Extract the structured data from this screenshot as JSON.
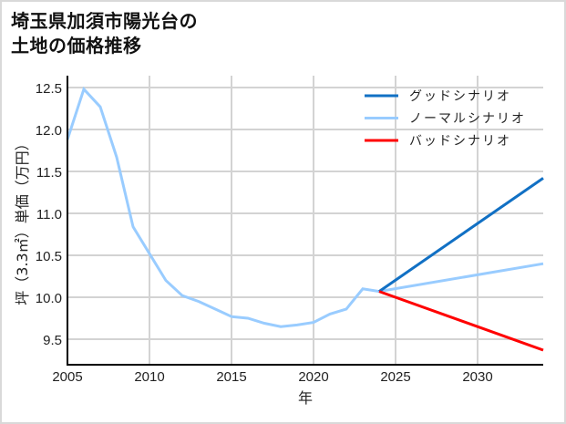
{
  "title": {
    "line1": "埼玉県加須市陽光台の",
    "line2": "土地の価格推移"
  },
  "colors": {
    "good": "#1170c4",
    "normal": "#99ccff",
    "bad": "#ff0000",
    "grid": "#d3d3d3",
    "axis": "#000000"
  },
  "chart_data": {
    "type": "line",
    "title": "埼玉県加須市陽光台の土地の価格推移",
    "xlabel": "年",
    "ylabel": "坪（3.3㎡）単価（万円）",
    "xlim": [
      2005,
      2034
    ],
    "ylim": [
      9.2,
      12.62
    ],
    "x_ticks": [
      "2005",
      "2010",
      "2015",
      "2020",
      "2025",
      "2030"
    ],
    "y_ticks": [
      "9.5",
      "10.0",
      "10.5",
      "11.0",
      "11.5",
      "12.0",
      "12.5"
    ],
    "grid": true,
    "legend_position": "upper right",
    "series": [
      {
        "name": "グッドシナリオ",
        "color": "#1170c4",
        "x": [
          2024,
          2034
        ],
        "values": [
          10.07,
          11.42
        ]
      },
      {
        "name": "ノーマルシナリオ",
        "color": "#99ccff",
        "x": [
          2005,
          2006,
          2007,
          2008,
          2009,
          2010,
          2011,
          2012,
          2013,
          2014,
          2015,
          2016,
          2017,
          2018,
          2019,
          2020,
          2021,
          2022,
          2023,
          2024,
          2034
        ],
        "values": [
          11.88,
          12.48,
          12.27,
          11.67,
          10.84,
          10.52,
          10.2,
          10.02,
          9.95,
          9.86,
          9.77,
          9.75,
          9.69,
          9.65,
          9.67,
          9.7,
          9.8,
          9.86,
          10.1,
          10.07,
          10.4
        ]
      },
      {
        "name": "バッドシナリオ",
        "color": "#ff0000",
        "x": [
          2024,
          2034
        ],
        "values": [
          10.07,
          9.37
        ]
      }
    ]
  },
  "axes": {
    "xlabel": "年",
    "ylabel": "坪（3.3㎡）単価（万円）"
  },
  "legend": [
    {
      "label": "グッドシナリオ",
      "color": "#1170c4"
    },
    {
      "label": "ノーマルシナリオ",
      "color": "#99ccff"
    },
    {
      "label": "バッドシナリオ",
      "color": "#ff0000"
    }
  ]
}
